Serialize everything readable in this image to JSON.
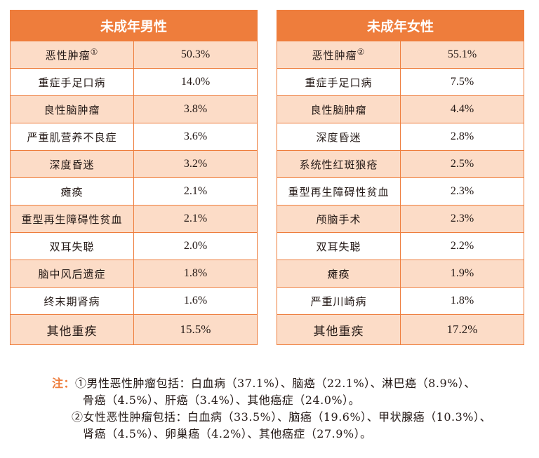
{
  "male": {
    "title": "未成年男性",
    "rows": [
      {
        "name": "恶性肿瘤",
        "mark": "①",
        "value": "50.3%"
      },
      {
        "name": "重症手足口病",
        "mark": "",
        "value": "14.0%"
      },
      {
        "name": "良性脑肿瘤",
        "mark": "",
        "value": "3.8%"
      },
      {
        "name": "严重肌营养不良症",
        "mark": "",
        "value": "3.6%"
      },
      {
        "name": "深度昏迷",
        "mark": "",
        "value": "3.2%"
      },
      {
        "name": "瘫痪",
        "mark": "",
        "value": "2.1%"
      },
      {
        "name": "重型再生障碍性贫血",
        "mark": "",
        "value": "2.1%"
      },
      {
        "name": "双耳失聪",
        "mark": "",
        "value": "2.0%"
      },
      {
        "name": "脑中风后遗症",
        "mark": "",
        "value": "1.8%"
      },
      {
        "name": "终末期肾病",
        "mark": "",
        "value": "1.6%"
      },
      {
        "name": "其他重疾",
        "mark": "",
        "value": "15.5%"
      }
    ]
  },
  "female": {
    "title": "未成年女性",
    "rows": [
      {
        "name": "恶性肿瘤",
        "mark": "②",
        "value": "55.1%"
      },
      {
        "name": "重症手足口病",
        "mark": "",
        "value": "7.5%"
      },
      {
        "name": "良性脑肿瘤",
        "mark": "",
        "value": "4.4%"
      },
      {
        "name": "深度昏迷",
        "mark": "",
        "value": "2.8%"
      },
      {
        "name": "系统性红斑狼疮",
        "mark": "",
        "value": "2.5%"
      },
      {
        "name": "重型再生障碍性贫血",
        "mark": "",
        "value": "2.3%"
      },
      {
        "name": "颅脑手术",
        "mark": "",
        "value": "2.3%"
      },
      {
        "name": "双耳失聪",
        "mark": "",
        "value": "2.2%"
      },
      {
        "name": "瘫痪",
        "mark": "",
        "value": "1.9%"
      },
      {
        "name": "严重川崎病",
        "mark": "",
        "value": "1.8%"
      },
      {
        "name": "其他重疾",
        "mark": "",
        "value": "17.2%"
      }
    ]
  },
  "notes": {
    "label": "注：",
    "line1": "①男性恶性肿瘤包括：白血病（37.1%）、脑癌（22.1%）、淋巴癌（8.9%）、",
    "line2": "骨癌（4.5%）、肝癌（3.4%）、其他癌症（24.0%）。",
    "line3": "②女性恶性肿瘤包括：白血病（33.5%）、脑癌（19.6%）、甲状腺癌（10.3%）、",
    "line4": "肾癌（4.5%）、卵巢癌（4.2%）、其他癌症（27.9%）。"
  },
  "colors": {
    "accent": "#ee7d3c",
    "stripe": "#fcdcc7"
  }
}
